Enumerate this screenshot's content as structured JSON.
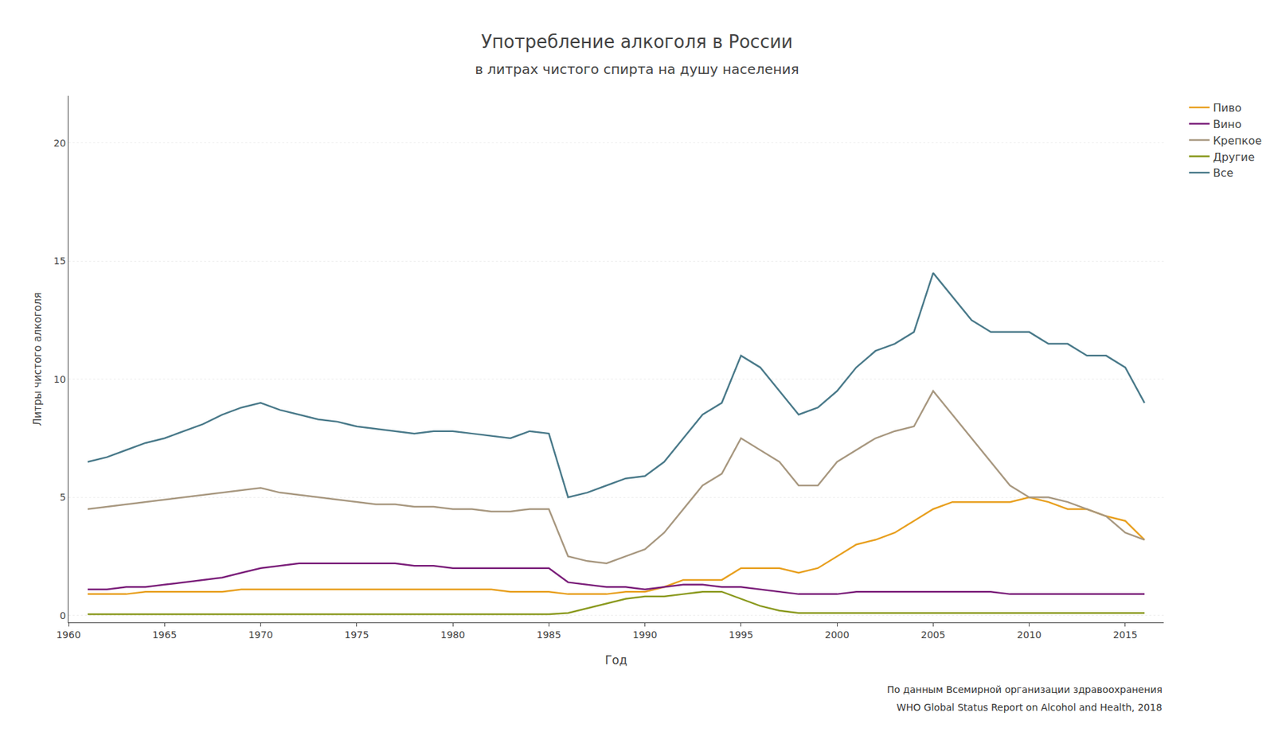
{
  "chart_data": {
    "type": "line",
    "title": "Употребление алкоголя в России",
    "subtitle": "в литрах чистого спирта на душу населения",
    "xlabel": "Год",
    "ylabel": "Литры чистого алкоголя",
    "annotations": [
      "По данным Всемирной организации здравоохранения",
      "WHO Global Status Report on Alcohol and Health, 2018"
    ],
    "xlim": [
      1960,
      2017
    ],
    "ylim": [
      -0.3,
      22
    ],
    "xticks": [
      1960,
      1965,
      1970,
      1975,
      1980,
      1985,
      1990,
      1995,
      2000,
      2005,
      2010,
      2015
    ],
    "yticks": [
      0,
      5,
      10,
      15,
      20
    ],
    "grid": "y",
    "legend": "right",
    "x": [
      1961,
      1962,
      1963,
      1964,
      1965,
      1966,
      1967,
      1968,
      1969,
      1970,
      1971,
      1972,
      1973,
      1974,
      1975,
      1976,
      1977,
      1978,
      1979,
      1980,
      1981,
      1982,
      1983,
      1984,
      1985,
      1986,
      1987,
      1988,
      1989,
      1990,
      1991,
      1992,
      1993,
      1994,
      1995,
      1996,
      1997,
      1998,
      1999,
      2000,
      2001,
      2002,
      2003,
      2004,
      2005,
      2006,
      2007,
      2008,
      2009,
      2010,
      2011,
      2012,
      2013,
      2014,
      2015,
      2016
    ],
    "series": [
      {
        "name": "Пиво",
        "color": "#E8A020",
        "values": [
          0.9,
          0.9,
          0.9,
          1.0,
          1.0,
          1.0,
          1.0,
          1.0,
          1.1,
          1.1,
          1.1,
          1.1,
          1.1,
          1.1,
          1.1,
          1.1,
          1.1,
          1.1,
          1.1,
          1.1,
          1.1,
          1.1,
          1.0,
          1.0,
          1.0,
          0.9,
          0.9,
          0.9,
          1.0,
          1.0,
          1.2,
          1.5,
          1.5,
          1.5,
          2.0,
          2.0,
          2.0,
          1.8,
          2.0,
          2.5,
          3.0,
          3.2,
          3.5,
          4.0,
          4.5,
          4.8,
          4.8,
          4.8,
          4.8,
          5.0,
          4.8,
          4.5,
          4.5,
          4.2,
          4.0,
          3.2
        ]
      },
      {
        "name": "Вино",
        "color": "#7B1F7A",
        "values": [
          1.1,
          1.1,
          1.2,
          1.2,
          1.3,
          1.4,
          1.5,
          1.6,
          1.8,
          2.0,
          2.1,
          2.2,
          2.2,
          2.2,
          2.2,
          2.2,
          2.2,
          2.1,
          2.1,
          2.0,
          2.0,
          2.0,
          2.0,
          2.0,
          2.0,
          1.4,
          1.3,
          1.2,
          1.2,
          1.1,
          1.2,
          1.3,
          1.3,
          1.2,
          1.2,
          1.1,
          1.0,
          0.9,
          0.9,
          0.9,
          1.0,
          1.0,
          1.0,
          1.0,
          1.0,
          1.0,
          1.0,
          1.0,
          0.9,
          0.9,
          0.9,
          0.9,
          0.9,
          0.9,
          0.9,
          0.9
        ]
      },
      {
        "name": "Крепкое",
        "color": "#A89880",
        "values": [
          4.5,
          4.6,
          4.7,
          4.8,
          4.9,
          5.0,
          5.1,
          5.2,
          5.3,
          5.4,
          5.2,
          5.1,
          5.0,
          4.9,
          4.8,
          4.7,
          4.7,
          4.6,
          4.6,
          4.5,
          4.5,
          4.4,
          4.4,
          4.5,
          4.5,
          2.5,
          2.3,
          2.2,
          2.5,
          2.8,
          3.5,
          4.5,
          5.5,
          6.0,
          7.5,
          7.0,
          6.5,
          5.5,
          5.5,
          6.5,
          7.0,
          7.5,
          7.8,
          8.0,
          9.5,
          8.5,
          7.5,
          6.5,
          5.5,
          5.0,
          5.0,
          4.8,
          4.5,
          4.2,
          3.5,
          3.2
        ]
      },
      {
        "name": "Другие",
        "color": "#8B9A20",
        "values": [
          0.05,
          0.05,
          0.05,
          0.05,
          0.05,
          0.05,
          0.05,
          0.05,
          0.05,
          0.05,
          0.05,
          0.05,
          0.05,
          0.05,
          0.05,
          0.05,
          0.05,
          0.05,
          0.05,
          0.05,
          0.05,
          0.05,
          0.05,
          0.05,
          0.05,
          0.1,
          0.3,
          0.5,
          0.7,
          0.8,
          0.8,
          0.9,
          1.0,
          1.0,
          0.7,
          0.4,
          0.2,
          0.1,
          0.1,
          0.1,
          0.1,
          0.1,
          0.1,
          0.1,
          0.1,
          0.1,
          0.1,
          0.1,
          0.1,
          0.1,
          0.1,
          0.1,
          0.1,
          0.1,
          0.1,
          0.1
        ]
      },
      {
        "name": "Все",
        "color": "#4A7A8A",
        "values": [
          6.5,
          6.7,
          7.0,
          7.3,
          7.5,
          7.8,
          8.1,
          8.5,
          8.8,
          9.0,
          8.7,
          8.5,
          8.3,
          8.2,
          8.0,
          7.9,
          7.8,
          7.7,
          7.8,
          7.8,
          7.7,
          7.6,
          7.5,
          7.8,
          7.7,
          5.0,
          5.2,
          5.5,
          5.8,
          5.9,
          6.5,
          7.5,
          8.5,
          9.0,
          11.0,
          10.5,
          9.5,
          8.5,
          8.8,
          9.5,
          10.5,
          11.2,
          11.5,
          12.0,
          14.5,
          13.5,
          12.5,
          12.0,
          12.0,
          12.0,
          11.5,
          11.5,
          11.0,
          11.0,
          10.5,
          9.0
        ]
      }
    ]
  }
}
